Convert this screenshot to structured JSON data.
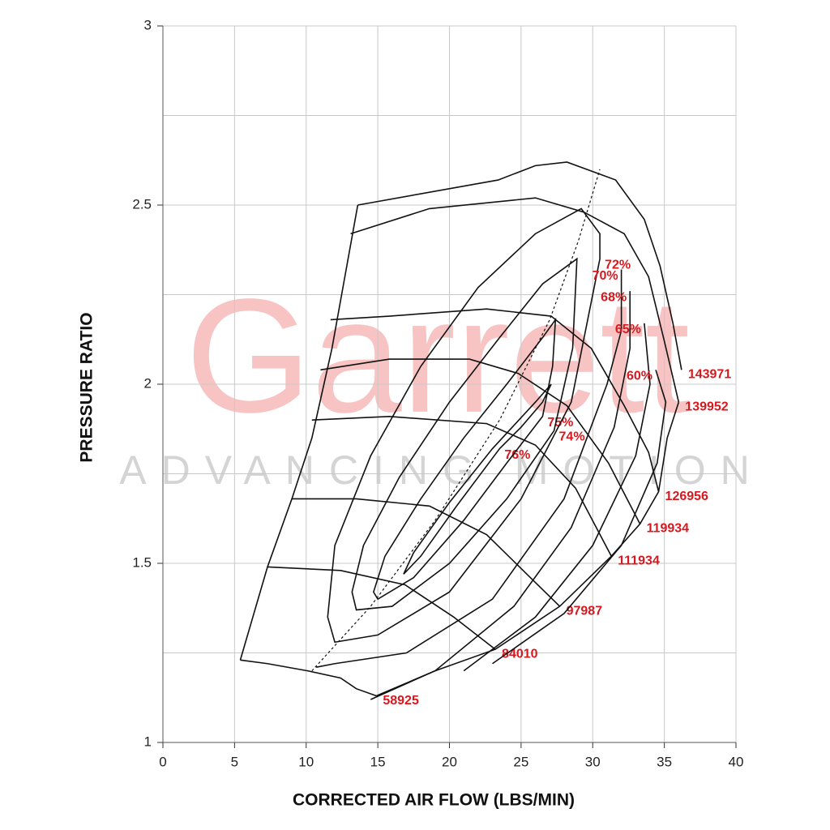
{
  "chart_data": {
    "type": "line",
    "watermark": "Garrett",
    "watermark_subtitle": "ADVANCING MOTION",
    "xlabel": "CORRECTED AIR FLOW (LBS/MIN)",
    "ylabel": "PRESSURE RATIO",
    "xlim": [
      0,
      40
    ],
    "ylim": [
      1,
      3
    ],
    "xticks": [
      0,
      5,
      10,
      15,
      20,
      25,
      30,
      35,
      40
    ],
    "yticks": [
      1,
      1.5,
      2,
      2.5,
      3
    ],
    "y_minor_ticks": [
      1.25,
      1.75,
      2.25,
      2.75
    ],
    "grid": true,
    "line_color": "#111111",
    "label_color": "#d7191f",
    "surge_line": {
      "x": [
        5.4,
        7.3,
        9.0,
        10.4,
        11.8,
        13.6
      ],
      "y": [
        1.23,
        1.49,
        1.68,
        1.85,
        2.1,
        2.5
      ]
    },
    "choke_line": {
      "x": [
        14.9,
        19.0,
        23.2,
        27.7,
        31.3,
        33.3,
        34.6,
        35.2,
        36.0
      ],
      "y": [
        1.13,
        1.2,
        1.26,
        1.38,
        1.52,
        1.61,
        1.7,
        1.85,
        1.95
      ]
    },
    "peak_efficiency_line": {
      "dashed": true,
      "x": [
        10.4,
        14.5,
        19.0,
        23.5,
        27.0,
        29.0,
        30.5
      ],
      "y": [
        1.2,
        1.38,
        1.62,
        1.9,
        2.18,
        2.4,
        2.6
      ]
    },
    "speed_lines": [
      {
        "name": "58925",
        "x": [
          5.4,
          7.3,
          10.1,
          12.4,
          13.5,
          14.9
        ],
        "y": [
          1.23,
          1.22,
          1.2,
          1.18,
          1.15,
          1.13
        ]
      },
      {
        "name": "84010",
        "x": [
          7.3,
          12.4,
          16.9,
          20.3,
          23.2
        ],
        "y": [
          1.49,
          1.48,
          1.44,
          1.35,
          1.26
        ]
      },
      {
        "name": "97987",
        "x": [
          9.0,
          13.5,
          18.6,
          22.6,
          25.4,
          27.7
        ],
        "y": [
          1.68,
          1.68,
          1.66,
          1.58,
          1.47,
          1.38
        ]
      },
      {
        "name": "111934",
        "x": [
          10.4,
          15.8,
          22.6,
          26.0,
          28.8,
          31.3
        ],
        "y": [
          1.9,
          1.91,
          1.89,
          1.83,
          1.71,
          1.52
        ]
      },
      {
        "name": "119934",
        "x": [
          11.0,
          15.8,
          21.4,
          24.8,
          28.2,
          31.1,
          33.3
        ],
        "y": [
          2.04,
          2.07,
          2.07,
          2.03,
          1.94,
          1.78,
          1.61
        ]
      },
      {
        "name": "126956",
        "x": [
          11.7,
          15.8,
          22.6,
          27.1,
          29.9,
          32.2,
          33.9,
          34.6
        ],
        "y": [
          2.18,
          2.19,
          2.21,
          2.19,
          2.1,
          1.94,
          1.81,
          1.7
        ]
      },
      {
        "name": "139952",
        "x": [
          13.1,
          18.6,
          26.0,
          29.4,
          32.2,
          33.9,
          35.0,
          36.0
        ],
        "y": [
          2.42,
          2.49,
          2.52,
          2.48,
          2.42,
          2.3,
          2.12,
          1.95
        ]
      },
      {
        "name": "143971",
        "x": [
          13.6,
          23.4,
          26.0,
          28.2,
          31.6,
          33.6,
          34.7,
          35.6,
          36.2
        ],
        "y": [
          2.5,
          2.57,
          2.61,
          2.62,
          2.57,
          2.46,
          2.33,
          2.17,
          2.04
        ]
      }
    ],
    "efficiency_islands": [
      {
        "name": "76%",
        "closed": true,
        "x": [
          23.5,
          20.5,
          18.0,
          16.8,
          17.5,
          20.0,
          23.0,
          26.0,
          27.1,
          26.5,
          25.0
        ],
        "y": [
          1.82,
          1.66,
          1.52,
          1.47,
          1.53,
          1.67,
          1.82,
          1.95,
          2.0,
          1.95,
          1.88
        ]
      },
      {
        "name": "75%",
        "closed": true,
        "x": [
          26.5,
          24.0,
          21.0,
          17.5,
          15.0,
          14.7,
          15.5,
          18.0,
          21.0,
          24.0,
          26.5,
          27.4,
          27.2
        ],
        "y": [
          1.91,
          1.78,
          1.62,
          1.46,
          1.4,
          1.42,
          1.52,
          1.68,
          1.85,
          2.0,
          2.13,
          2.18,
          2.05
        ]
      },
      {
        "name": "74%",
        "closed": true,
        "x": [
          27.3,
          24.0,
          20.0,
          16.0,
          13.5,
          13.2,
          14.0,
          16.5,
          20.0,
          23.5,
          26.5,
          28.9,
          28.6
        ],
        "y": [
          1.87,
          1.68,
          1.5,
          1.38,
          1.37,
          1.42,
          1.55,
          1.74,
          1.95,
          2.13,
          2.28,
          2.35,
          2.1
        ]
      },
      {
        "name": "72%",
        "closed": true,
        "x": [
          30.5,
          28.5,
          25.0,
          20.0,
          15.0,
          12.0,
          11.5,
          12.0,
          14.5,
          18.0,
          22.0,
          26.0,
          29.2,
          30.5
        ],
        "y": [
          2.35,
          1.95,
          1.68,
          1.42,
          1.3,
          1.28,
          1.35,
          1.55,
          1.8,
          2.05,
          2.27,
          2.42,
          2.49,
          2.42
        ]
      },
      {
        "name": "70%",
        "closed": false,
        "x": [
          32.0,
          32.0,
          31.0,
          28.0,
          23.0,
          17.0,
          12.0,
          10.7
        ],
        "y": [
          2.32,
          2.15,
          2.0,
          1.68,
          1.4,
          1.25,
          1.22,
          1.21
        ]
      },
      {
        "name": "68%",
        "closed": false,
        "x": [
          32.6,
          32.6,
          31.5,
          28.5,
          24.5,
          19.0,
          14.5
        ],
        "y": [
          2.26,
          2.1,
          1.88,
          1.6,
          1.38,
          1.2,
          1.12
        ]
      },
      {
        "name": "65%",
        "closed": false,
        "x": [
          33.6,
          34.0,
          33.0,
          30.0,
          26.0,
          21.0
        ],
        "y": [
          2.17,
          2.0,
          1.8,
          1.55,
          1.35,
          1.2
        ]
      },
      {
        "name": "60%",
        "closed": false,
        "x": [
          34.4,
          35.1,
          34.5,
          32.0,
          28.0,
          23.0
        ],
        "y": [
          2.04,
          1.95,
          1.78,
          1.55,
          1.36,
          1.22
        ]
      }
    ]
  }
}
